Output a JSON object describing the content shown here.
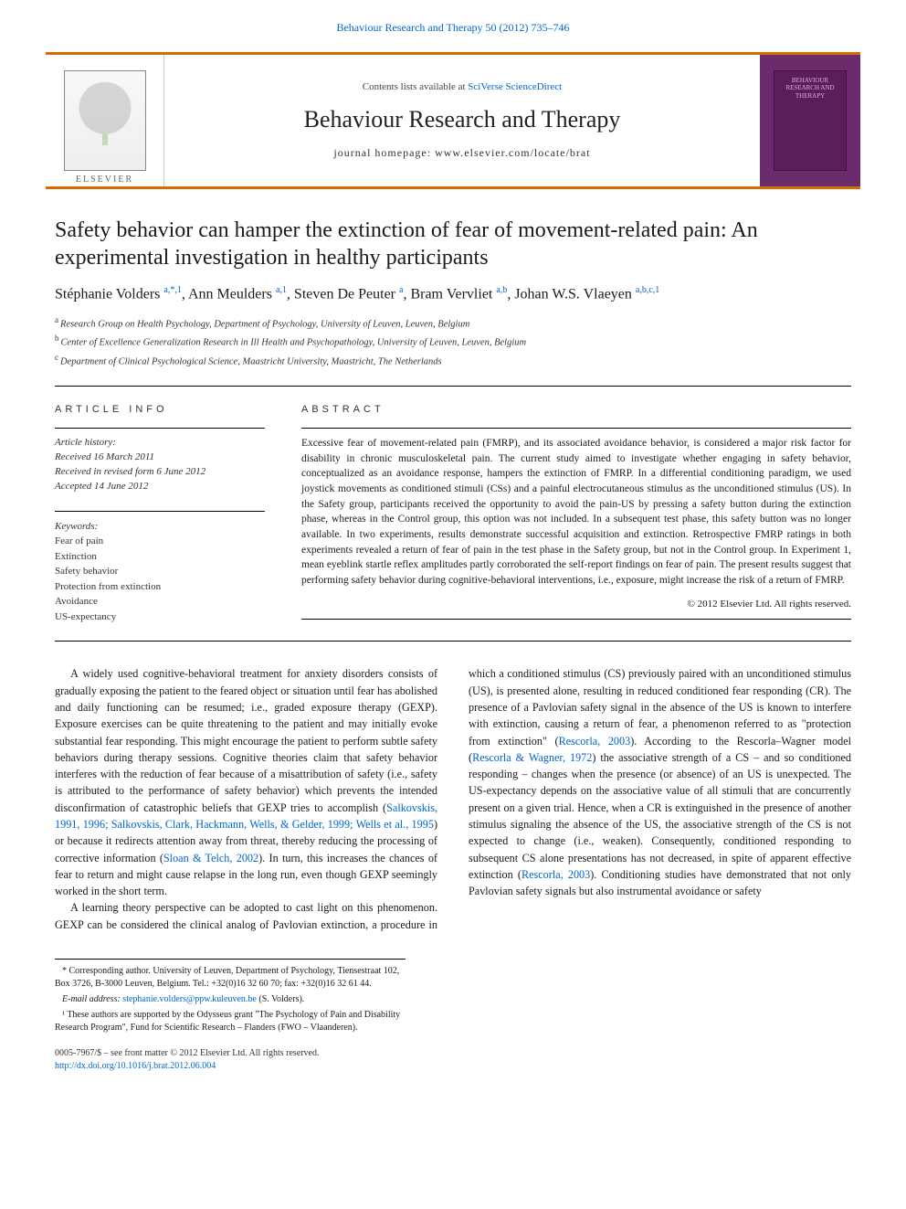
{
  "top_citation": "Behaviour Research and Therapy 50 (2012) 735–746",
  "banner": {
    "contents_prefix": "Contents lists available at ",
    "contents_link": "SciVerse ScienceDirect",
    "journal": "Behaviour Research and Therapy",
    "homepage_prefix": "journal homepage: ",
    "homepage_url": "www.elsevier.com/locate/brat",
    "publisher_wordmark": "ELSEVIER",
    "cover_text": "BEHAVIOUR RESEARCH AND THERAPY"
  },
  "title": "Safety behavior can hamper the extinction of fear of movement-related pain: An experimental investigation in healthy participants",
  "authors_html": "Stéphanie Volders <sup>a,*,1</sup>, Ann Meulders <sup>a,1</sup>, Steven De Peuter <sup>a</sup>, Bram Vervliet <sup>a,b</sup>, Johan W.S. Vlaeyen <sup>a,b,c,1</sup>",
  "affiliations": [
    {
      "sup": "a",
      "text": "Research Group on Health Psychology, Department of Psychology, University of Leuven, Leuven, Belgium"
    },
    {
      "sup": "b",
      "text": "Center of Excellence Generalization Research in Ill Health and Psychopathology, University of Leuven, Leuven, Belgium"
    },
    {
      "sup": "c",
      "text": "Department of Clinical Psychological Science, Maastricht University, Maastricht, The Netherlands"
    }
  ],
  "info_head": "ARTICLE INFO",
  "abstract_head": "ABSTRACT",
  "history": {
    "label": "Article history:",
    "received": "Received 16 March 2011",
    "revised": "Received in revised form 6 June 2012",
    "accepted": "Accepted 14 June 2012"
  },
  "keywords": {
    "label": "Keywords:",
    "items": [
      "Fear of pain",
      "Extinction",
      "Safety behavior",
      "Protection from extinction",
      "Avoidance",
      "US-expectancy"
    ]
  },
  "abstract": "Excessive fear of movement-related pain (FMRP), and its associated avoidance behavior, is considered a major risk factor for disability in chronic musculoskeletal pain. The current study aimed to investigate whether engaging in safety behavior, conceptualized as an avoidance response, hampers the extinction of FMRP. In a differential conditioning paradigm, we used joystick movements as conditioned stimuli (CSs) and a painful electrocutaneous stimulus as the unconditioned stimulus (US). In the Safety group, participants received the opportunity to avoid the pain-US by pressing a safety button during the extinction phase, whereas in the Control group, this option was not included. In a subsequent test phase, this safety button was no longer available. In two experiments, results demonstrate successful acquisition and extinction. Retrospective FMRP ratings in both experiments revealed a return of fear of pain in the test phase in the Safety group, but not in the Control group. In Experiment 1, mean eyeblink startle reflex amplitudes partly corroborated the self-report findings on fear of pain. The present results suggest that performing safety behavior during cognitive-behavioral interventions, i.e., exposure, might increase the risk of a return of FMRP.",
  "copyright": "© 2012 Elsevier Ltd. All rights reserved.",
  "body": {
    "p1_a": "A widely used cognitive-behavioral treatment for anxiety disorders consists of gradually exposing the patient to the feared object or situation until fear has abolished and daily functioning can be resumed; i.e., graded exposure therapy (GEXP). Exposure exercises can be quite threatening to the patient and may initially evoke substantial fear responding. This might encourage the patient to perform subtle safety behaviors during therapy sessions. Cognitive theories claim that safety behavior interferes with the reduction of fear because of a misattribution of safety (i.e., safety is attributed to the performance of safety behavior) which prevents the intended disconfirmation of catastrophic beliefs that GEXP tries to accomplish (",
    "p1_link1": "Salkovskis, 1991, 1996; Salkovskis, Clark, Hackmann, Wells, & Gelder, 1999; Wells et al., 1995",
    "p1_b": ") or because it redirects attention away from threat, thereby reducing the processing of corrective information (",
    "p1_link2": "Sloan & Telch, 2002",
    "p1_c": "). In turn, this increases the chances of fear to return and might cause relapse in the long run, even though GEXP seemingly worked in the short term.",
    "p2_a": "A learning theory perspective can be adopted to cast light on this phenomenon. GEXP can be considered the clinical analog of Pavlovian extinction, a procedure in which a conditioned stimulus (CS) previously paired with an unconditioned stimulus (US), is presented alone, resulting in reduced conditioned fear responding (CR). The presence of a Pavlovian safety signal in the absence of the US is known to interfere with extinction, causing a return of fear, a phenomenon referred to as \"protection from extinction\" (",
    "p2_link1": "Rescorla, 2003",
    "p2_b": "). According to the Rescorla–Wagner model (",
    "p2_link2": "Rescorla & Wagner, 1972",
    "p2_c": ") the associative strength of a CS – and so conditioned responding – changes when the presence (or absence) of an US is unexpected. The US-expectancy depends on the associative value of all stimuli that are concurrently present on a given trial. Hence, when a CR is extinguished in the presence of another stimulus signaling the absence of the US, the associative strength of the CS is not expected to change (i.e., weaken). Consequently, conditioned responding to subsequent CS alone presentations has not decreased, in spite of apparent effective extinction (",
    "p2_link3": "Rescorla, 2003",
    "p2_d": "). Conditioning studies have demonstrated that not only Pavlovian safety signals but also instrumental avoidance or safety"
  },
  "footnotes": {
    "corr": "* Corresponding author. University of Leuven, Department of Psychology, Tiensestraat 102, Box 3726, B-3000 Leuven, Belgium. Tel.: +32(0)16 32 60 70; fax: +32(0)16 32 61 44.",
    "email_label": "E-mail address: ",
    "email": "stephanie.volders@ppw.kuleuven.be",
    "email_suffix": " (S. Volders).",
    "note1": "¹ These authors are supported by the Odysseus grant \"The Psychology of Pain and Disability Research Program\", Fund for Scientific Research – Flanders (FWO – Vlaanderen)."
  },
  "bottom": {
    "line1": "0005-7967/$ – see front matter © 2012 Elsevier Ltd. All rights reserved.",
    "doi": "http://dx.doi.org/10.1016/j.brat.2012.06.004"
  },
  "colors": {
    "accent": "#d96c00",
    "link": "#0066cc",
    "cover_bg": "#6b2a6b"
  }
}
